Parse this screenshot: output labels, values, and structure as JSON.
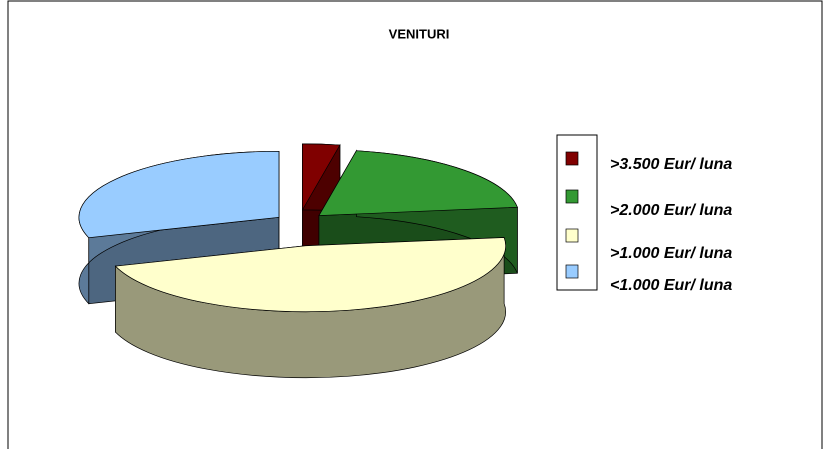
{
  "chart_data": {
    "type": "pie3d",
    "title": "VENITURI",
    "categories": [
      ">3.500 Eur/ luna",
      ">2.000 Eur/ luna",
      ">1.000 Eur/ luna",
      "<1.000 Eur/ luna"
    ],
    "values": [
      3,
      20,
      47,
      30
    ],
    "colors": [
      "#800000",
      "#339933",
      "#ffffcc",
      "#99ccff"
    ],
    "legend": "right"
  }
}
